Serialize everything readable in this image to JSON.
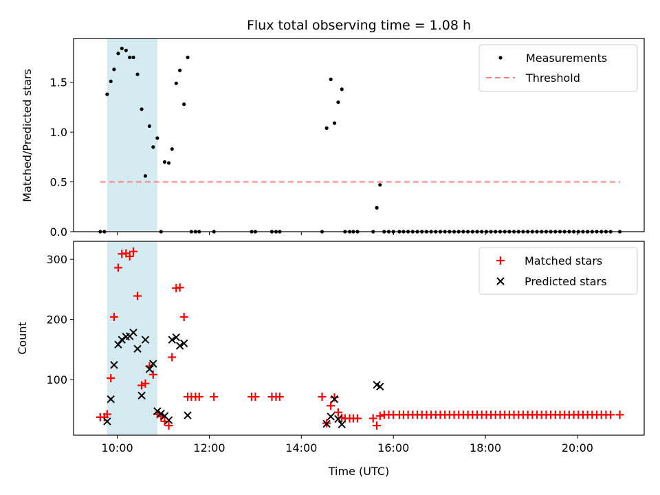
{
  "chart_data": {
    "title": "Flux total observing time = 1.08 h",
    "xlabel": "Time (UTC)",
    "x_unit": "hours UTC",
    "x_ticks": [
      10,
      12,
      14,
      16,
      18,
      20
    ],
    "x_tick_labels": [
      "10:00",
      "12:00",
      "14:00",
      "16:00",
      "18:00",
      "20:00"
    ],
    "xlim": [
      9.05,
      21.45
    ],
    "observing_window": [
      9.78,
      10.87
    ],
    "panels": [
      {
        "type": "scatter",
        "ylabel": "Matched/Predicted stars",
        "ylim": [
          0,
          1.94
        ],
        "y_ticks": [
          0.0,
          0.5,
          1.0,
          1.5
        ],
        "y_tick_labels": [
          "0.0",
          "0.5",
          "1.0",
          "1.5"
        ],
        "legend_position": "upper right",
        "threshold": {
          "name": "Threshold",
          "value": 0.5,
          "x_range": [
            9.63,
            20.93
          ],
          "color": "#ff8080"
        },
        "series": [
          {
            "name": "Measurements",
            "color": "#000000",
            "points": [
              [
                9.63,
                0
              ],
              [
                9.72,
                0
              ],
              [
                9.78,
                1.38
              ],
              [
                9.86,
                1.51
              ],
              [
                9.93,
                1.63
              ],
              [
                10.02,
                1.79
              ],
              [
                10.1,
                1.84
              ],
              [
                10.19,
                1.82
              ],
              [
                10.27,
                1.75
              ],
              [
                10.35,
                1.75
              ],
              [
                10.44,
                1.58
              ],
              [
                10.53,
                1.23
              ],
              [
                10.61,
                0.56
              ],
              [
                10.7,
                1.06
              ],
              [
                10.78,
                0.85
              ],
              [
                10.87,
                0.94
              ],
              [
                10.95,
                0
              ],
              [
                11.03,
                0.7
              ],
              [
                11.12,
                0.69
              ],
              [
                11.19,
                0.83
              ],
              [
                11.28,
                1.49
              ],
              [
                11.36,
                1.62
              ],
              [
                11.45,
                1.28
              ],
              [
                11.53,
                1.75
              ],
              [
                11.61,
                0
              ],
              [
                11.7,
                0
              ],
              [
                11.78,
                0
              ],
              [
                12.1,
                0
              ],
              [
                12.92,
                0
              ],
              [
                13.0,
                0
              ],
              [
                13.36,
                0
              ],
              [
                13.45,
                0
              ],
              [
                13.53,
                0
              ],
              [
                14.45,
                0
              ],
              [
                14.55,
                1.04
              ],
              [
                14.64,
                1.53
              ],
              [
                14.72,
                1.09
              ],
              [
                14.8,
                1.3
              ],
              [
                14.88,
                1.43
              ],
              [
                14.95,
                0
              ],
              [
                15.05,
                0
              ],
              [
                15.13,
                0
              ],
              [
                15.22,
                0
              ],
              [
                15.56,
                0
              ],
              [
                15.64,
                0.24
              ],
              [
                15.71,
                0.47
              ],
              [
                15.8,
                0
              ],
              [
                15.9,
                0
              ],
              [
                16.0,
                0
              ],
              [
                16.13,
                0
              ],
              [
                16.22,
                0
              ],
              [
                16.32,
                0
              ],
              [
                16.42,
                0
              ],
              [
                16.52,
                0
              ],
              [
                16.62,
                0
              ],
              [
                16.72,
                0
              ],
              [
                16.82,
                0
              ],
              [
                16.92,
                0
              ],
              [
                17.02,
                0
              ],
              [
                17.12,
                0
              ],
              [
                17.22,
                0
              ],
              [
                17.32,
                0
              ],
              [
                17.42,
                0
              ],
              [
                17.52,
                0
              ],
              [
                17.62,
                0
              ],
              [
                17.72,
                0
              ],
              [
                17.82,
                0
              ],
              [
                17.92,
                0
              ],
              [
                18.02,
                0
              ],
              [
                18.12,
                0
              ],
              [
                18.22,
                0
              ],
              [
                18.32,
                0
              ],
              [
                18.42,
                0
              ],
              [
                18.52,
                0
              ],
              [
                18.62,
                0
              ],
              [
                18.72,
                0
              ],
              [
                18.82,
                0
              ],
              [
                18.92,
                0
              ],
              [
                19.02,
                0
              ],
              [
                19.12,
                0
              ],
              [
                19.22,
                0
              ],
              [
                19.32,
                0
              ],
              [
                19.42,
                0
              ],
              [
                19.52,
                0
              ],
              [
                19.62,
                0
              ],
              [
                19.72,
                0
              ],
              [
                19.82,
                0
              ],
              [
                19.92,
                0
              ],
              [
                20.02,
                0
              ],
              [
                20.12,
                0
              ],
              [
                20.22,
                0
              ],
              [
                20.32,
                0
              ],
              [
                20.42,
                0
              ],
              [
                20.52,
                0
              ],
              [
                20.62,
                0
              ],
              [
                20.72,
                0
              ],
              [
                20.92,
                0
              ]
            ]
          }
        ]
      },
      {
        "type": "scatter",
        "ylabel": "Count",
        "ylim": [
          7,
          330
        ],
        "y_ticks": [
          100,
          200,
          300
        ],
        "y_tick_labels": [
          "100",
          "200",
          "300"
        ],
        "legend_position": "upper right",
        "series": [
          {
            "name": "Matched stars",
            "marker": "plus",
            "color": "#ff0000",
            "points": [
              [
                9.63,
                37
              ],
              [
                9.72,
                37
              ],
              [
                9.78,
                42
              ],
              [
                9.86,
                102
              ],
              [
                9.93,
                204
              ],
              [
                10.02,
                286
              ],
              [
                10.1,
                309
              ],
              [
                10.19,
                310
              ],
              [
                10.27,
                305
              ],
              [
                10.35,
                313
              ],
              [
                10.44,
                239
              ],
              [
                10.53,
                90
              ],
              [
                10.61,
                93
              ],
              [
                10.7,
                122
              ],
              [
                10.78,
                108
              ],
              [
                10.87,
                42
              ],
              [
                10.95,
                38
              ],
              [
                11.03,
                30
              ],
              [
                11.12,
                23
              ],
              [
                11.19,
                137
              ],
              [
                11.28,
                252
              ],
              [
                11.36,
                253
              ],
              [
                11.45,
                204
              ],
              [
                11.53,
                71
              ],
              [
                11.61,
                71
              ],
              [
                11.7,
                71
              ],
              [
                11.78,
                71
              ],
              [
                12.1,
                71
              ],
              [
                12.92,
                71
              ],
              [
                13.0,
                71
              ],
              [
                13.36,
                71
              ],
              [
                13.45,
                71
              ],
              [
                13.53,
                71
              ],
              [
                14.45,
                71
              ],
              [
                14.55,
                27
              ],
              [
                14.64,
                56
              ],
              [
                14.72,
                70
              ],
              [
                14.8,
                45
              ],
              [
                14.88,
                36
              ],
              [
                14.95,
                35
              ],
              [
                15.05,
                35
              ],
              [
                15.13,
                35
              ],
              [
                15.22,
                35
              ],
              [
                15.56,
                35
              ],
              [
                15.64,
                23
              ],
              [
                15.71,
                39
              ],
              [
                15.8,
                41
              ],
              [
                15.9,
                41
              ],
              [
                16.0,
                41
              ],
              [
                16.13,
                41
              ],
              [
                16.22,
                41
              ],
              [
                16.32,
                41
              ],
              [
                16.42,
                41
              ],
              [
                16.52,
                41
              ],
              [
                16.62,
                41
              ],
              [
                16.72,
                41
              ],
              [
                16.82,
                41
              ],
              [
                16.92,
                41
              ],
              [
                17.02,
                41
              ],
              [
                17.12,
                41
              ],
              [
                17.22,
                41
              ],
              [
                17.32,
                41
              ],
              [
                17.42,
                41
              ],
              [
                17.52,
                41
              ],
              [
                17.62,
                41
              ],
              [
                17.72,
                41
              ],
              [
                17.82,
                41
              ],
              [
                17.92,
                41
              ],
              [
                18.02,
                41
              ],
              [
                18.12,
                41
              ],
              [
                18.22,
                41
              ],
              [
                18.32,
                41
              ],
              [
                18.42,
                41
              ],
              [
                18.52,
                41
              ],
              [
                18.62,
                41
              ],
              [
                18.72,
                41
              ],
              [
                18.82,
                41
              ],
              [
                18.92,
                41
              ],
              [
                19.02,
                41
              ],
              [
                19.12,
                41
              ],
              [
                19.22,
                41
              ],
              [
                19.32,
                41
              ],
              [
                19.42,
                41
              ],
              [
                19.52,
                41
              ],
              [
                19.62,
                41
              ],
              [
                19.72,
                41
              ],
              [
                19.82,
                41
              ],
              [
                19.92,
                41
              ],
              [
                20.02,
                41
              ],
              [
                20.12,
                41
              ],
              [
                20.22,
                41
              ],
              [
                20.32,
                41
              ],
              [
                20.42,
                41
              ],
              [
                20.52,
                41
              ],
              [
                20.62,
                41
              ],
              [
                20.72,
                41
              ],
              [
                20.92,
                41
              ]
            ]
          },
          {
            "name": "Predicted stars",
            "marker": "x",
            "color": "#000000",
            "points": [
              [
                9.78,
                30
              ],
              [
                9.86,
                67
              ],
              [
                9.93,
                124
              ],
              [
                10.02,
                158
              ],
              [
                10.1,
                166
              ],
              [
                10.19,
                171
              ],
              [
                10.27,
                172
              ],
              [
                10.35,
                178
              ],
              [
                10.44,
                151
              ],
              [
                10.53,
                73
              ],
              [
                10.61,
                166
              ],
              [
                10.7,
                117
              ],
              [
                10.78,
                126
              ],
              [
                10.87,
                47
              ],
              [
                10.95,
                43
              ],
              [
                11.03,
                39
              ],
              [
                11.12,
                32
              ],
              [
                11.19,
                166
              ],
              [
                11.28,
                170
              ],
              [
                11.36,
                156
              ],
              [
                11.45,
                160
              ],
              [
                11.53,
                40
              ],
              [
                14.55,
                26
              ],
              [
                14.64,
                38
              ],
              [
                14.72,
                67
              ],
              [
                14.8,
                34
              ],
              [
                14.88,
                25
              ],
              [
                15.64,
                91
              ],
              [
                15.71,
                88
              ]
            ]
          }
        ]
      }
    ]
  }
}
